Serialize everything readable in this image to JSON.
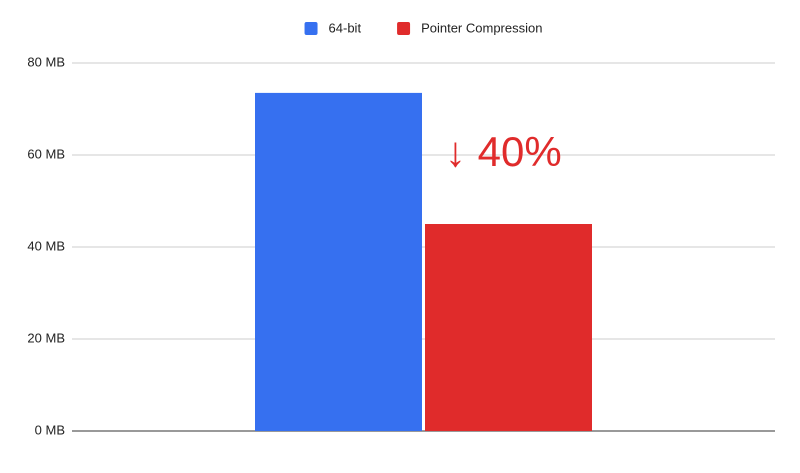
{
  "chart_data": {
    "type": "bar",
    "categories": [
      null
    ],
    "series": [
      {
        "name": "64-bit",
        "color": "#3670f0",
        "values": [
          73.5
        ]
      },
      {
        "name": "Pointer Compression",
        "color": "#e02b2b",
        "values": [
          45
        ]
      }
    ],
    "ylim": [
      0,
      80
    ],
    "yticks": [
      {
        "value": 0,
        "label": "0 MB"
      },
      {
        "value": 20,
        "label": "20 MB"
      },
      {
        "value": 40,
        "label": "40 MB"
      },
      {
        "value": 60,
        "label": "60 MB"
      },
      {
        "value": 80,
        "label": "80 MB"
      }
    ],
    "grid": true,
    "legend": "top",
    "annotation": "↓ 40%"
  }
}
